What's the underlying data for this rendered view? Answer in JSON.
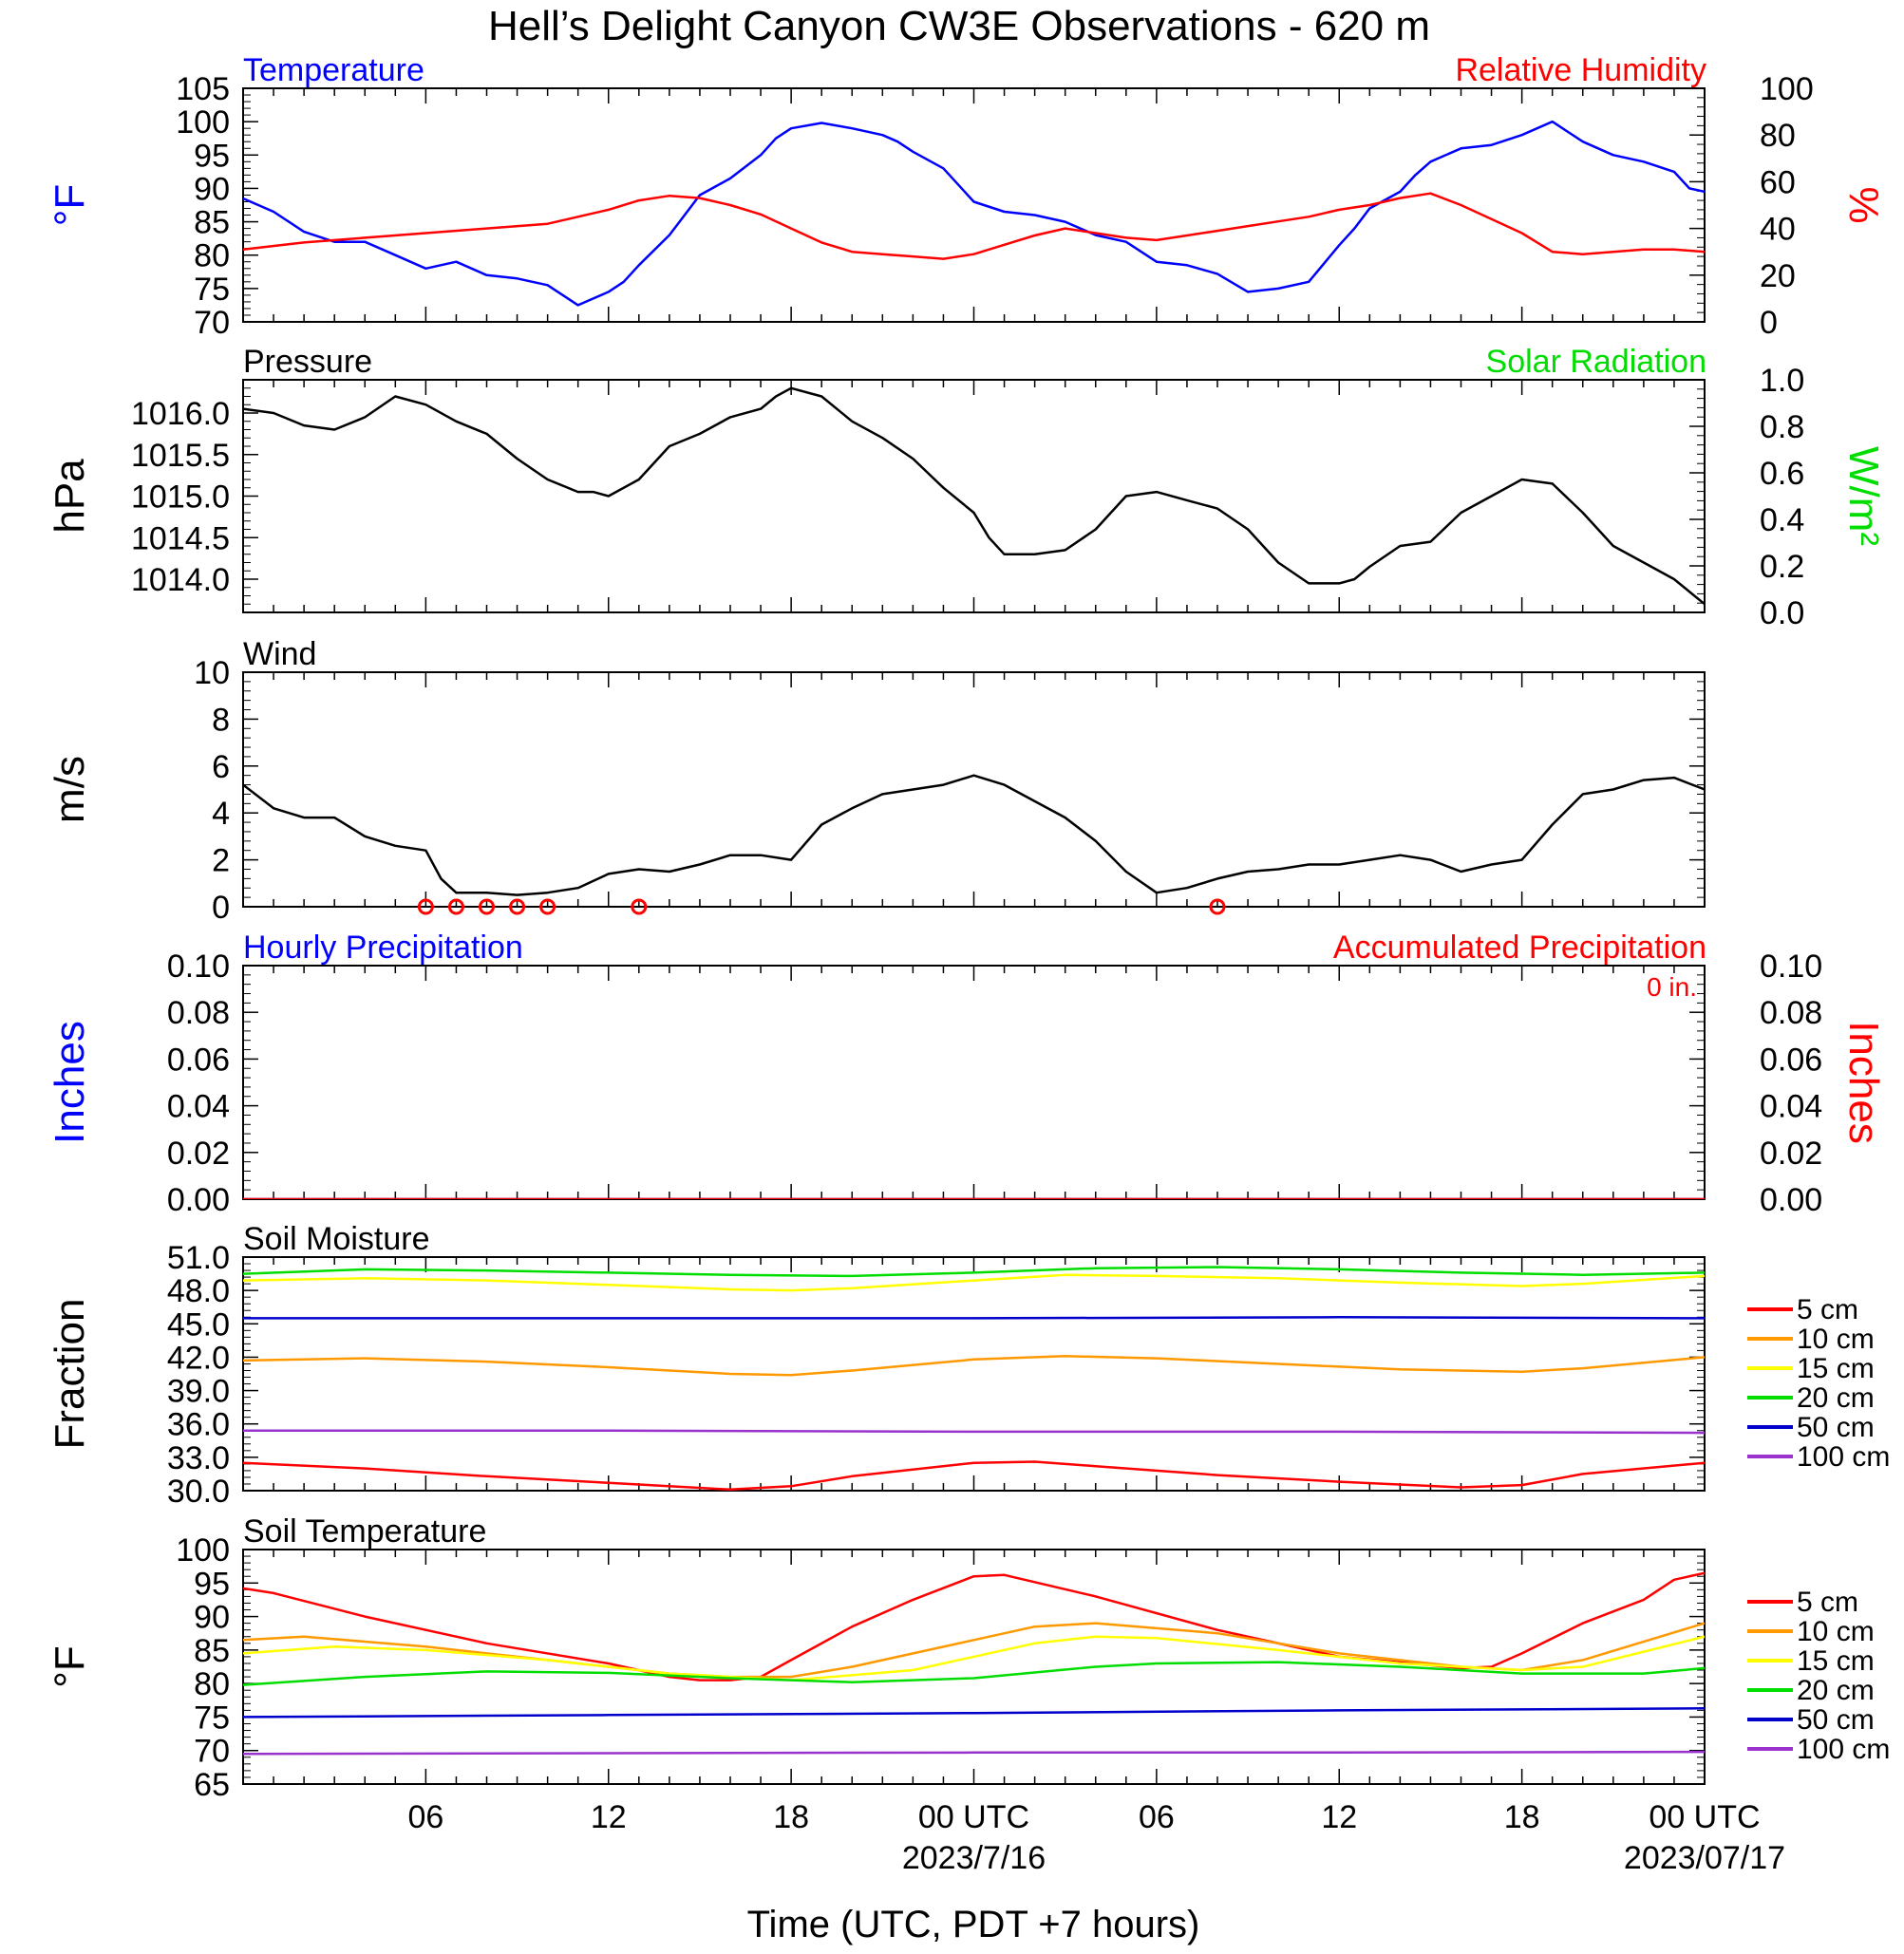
{
  "title": "Hell’s Delight Canyon CW3E Observations - 620 m",
  "x_axis": {
    "label": "Time (UTC, PDT +7 hours)",
    "range_hours": [
      0,
      48
    ],
    "tick_labels": [
      {
        "hour": 6,
        "text": "06"
      },
      {
        "hour": 12,
        "text": "12"
      },
      {
        "hour": 18,
        "text": "18"
      },
      {
        "hour": 24,
        "text": "00 UTC",
        "sub": "2023/7/16"
      },
      {
        "hour": 30,
        "text": "06"
      },
      {
        "hour": 36,
        "text": "12"
      },
      {
        "hour": 42,
        "text": "18"
      },
      {
        "hour": 48,
        "text": "00 UTC",
        "sub": "2023/07/17"
      }
    ]
  },
  "colors": {
    "blue": "#0000ff",
    "red": "#ff0000",
    "green": "#00dd00",
    "black": "#000000",
    "orange": "#ff9900",
    "yellow": "#ffff00",
    "soil_blue": "#0000cc",
    "purple": "#9933cc"
  },
  "chart_data": [
    {
      "id": "temp_rh",
      "type": "line",
      "title_left": "Temperature",
      "title_right": "Relative Humidity",
      "ylabel_left": "°F",
      "ylabel_right": "%",
      "ylim_left": [
        70,
        105
      ],
      "ylim_right": [
        0,
        100
      ],
      "yticks_left": [
        "70",
        "75",
        "80",
        "85",
        "90",
        "95",
        "100",
        "105"
      ],
      "yticks_right": [
        "0",
        "20",
        "40",
        "60",
        "80",
        "100"
      ],
      "series": [
        {
          "name": "Temperature",
          "axis": "left",
          "color": "#0000ff",
          "x": [
            0,
            1,
            2,
            3,
            4,
            5,
            6,
            7,
            8,
            9,
            10,
            11,
            12,
            12.5,
            13,
            14,
            15,
            16,
            17,
            17.5,
            18,
            19,
            20,
            21,
            21.5,
            22,
            23,
            24,
            25,
            26,
            27,
            28,
            29,
            30,
            31,
            32,
            33,
            34,
            35,
            36,
            36.5,
            37,
            38,
            38.5,
            39,
            40,
            41,
            42,
            43,
            44,
            45,
            46,
            47,
            47.5,
            48
          ],
          "y": [
            88.5,
            86.5,
            83.5,
            82,
            82,
            80,
            78,
            79,
            77,
            76.5,
            75.5,
            72.5,
            74.5,
            76,
            78.5,
            83,
            89,
            91.5,
            95,
            97.5,
            99,
            99.8,
            99,
            98,
            97,
            95.5,
            93,
            88,
            86.5,
            86,
            85,
            83,
            82,
            79,
            78.5,
            77.2,
            74.5,
            75,
            76,
            81.5,
            84,
            87,
            89.5,
            92,
            94,
            96,
            96.5,
            98,
            100,
            97,
            95,
            94,
            92.5,
            90,
            89.5
          ]
        },
        {
          "name": "Relative Humidity",
          "axis": "right",
          "color": "#ff0000",
          "x": [
            0,
            2,
            4,
            6,
            8,
            10,
            11,
            12,
            13,
            14,
            15,
            16,
            17,
            18,
            19,
            20,
            21,
            22,
            23,
            24,
            25,
            26,
            27,
            28,
            29,
            30,
            31,
            32,
            33,
            34,
            35,
            36,
            37,
            38,
            39,
            40,
            41,
            42,
            43,
            44,
            45,
            46,
            47,
            48
          ],
          "y": [
            31,
            34,
            36,
            38,
            40,
            42,
            45,
            48,
            52,
            54,
            53,
            50,
            46,
            40,
            34,
            30,
            29,
            28,
            27,
            29,
            33,
            37,
            40,
            38,
            36,
            35,
            37,
            39,
            41,
            43,
            45,
            48,
            50,
            53,
            55,
            50,
            44,
            38,
            30,
            29,
            30,
            31,
            31,
            30
          ]
        }
      ]
    },
    {
      "id": "pressure",
      "type": "line",
      "title_left": "Pressure",
      "title_right": "Solar Radiation",
      "ylabel_left": "hPa",
      "ylabel_right": "W/m²",
      "ylim_left": [
        1013.6,
        1016.4
      ],
      "ylim_right": [
        0,
        1.0
      ],
      "yticks_left": [
        {
          "v": 1014.0,
          "t": "1014.0"
        },
        {
          "v": 1014.5,
          "t": "1014.5"
        },
        {
          "v": 1015.0,
          "t": "1015.0"
        },
        {
          "v": 1015.5,
          "t": "1015.5"
        },
        {
          "v": 1016.0,
          "t": "1016.0"
        }
      ],
      "yticks_right": [
        "0.0",
        "0.2",
        "0.4",
        "0.6",
        "0.8",
        "1.0"
      ],
      "series": [
        {
          "name": "Pressure",
          "axis": "left",
          "color": "#000000",
          "x": [
            0,
            1,
            2,
            3,
            4,
            5,
            6,
            7,
            8,
            9,
            10,
            11,
            11.5,
            12,
            13,
            14,
            15,
            16,
            17,
            17.5,
            18,
            19,
            20,
            21,
            22,
            23,
            24,
            24.5,
            25,
            26,
            27,
            28,
            29,
            30,
            31,
            32,
            33,
            34,
            35,
            36,
            36.5,
            37,
            38,
            39,
            40,
            41,
            42,
            43,
            44,
            45,
            46,
            47,
            48
          ],
          "y": [
            1016.05,
            1016.0,
            1015.85,
            1015.8,
            1015.95,
            1016.2,
            1016.1,
            1015.9,
            1015.75,
            1015.45,
            1015.2,
            1015.05,
            1015.05,
            1015.0,
            1015.2,
            1015.6,
            1015.75,
            1015.95,
            1016.05,
            1016.2,
            1016.3,
            1016.2,
            1015.9,
            1015.7,
            1015.45,
            1015.1,
            1014.8,
            1014.5,
            1014.3,
            1014.3,
            1014.35,
            1014.6,
            1015.0,
            1015.05,
            1014.95,
            1014.85,
            1014.6,
            1014.2,
            1013.95,
            1013.95,
            1014.0,
            1014.15,
            1014.4,
            1014.45,
            1014.8,
            1015.0,
            1015.2,
            1015.15,
            1014.8,
            1014.4,
            1014.2,
            1014.0,
            1013.7
          ]
        }
      ]
    },
    {
      "id": "wind",
      "type": "line",
      "title_left": "Wind",
      "ylabel_left": "m/s",
      "ylim_left": [
        0,
        10
      ],
      "yticks_left": [
        "0",
        "2",
        "4",
        "6",
        "8",
        "10"
      ],
      "series": [
        {
          "name": "Wind",
          "axis": "left",
          "color": "#000000",
          "x": [
            0,
            1,
            2,
            3,
            4,
            5,
            6,
            6.5,
            7,
            8,
            9,
            10,
            11,
            12,
            13,
            14,
            15,
            16,
            17,
            18,
            19,
            20,
            21,
            22,
            23,
            24,
            25,
            26,
            27,
            28,
            29,
            30,
            31,
            32,
            33,
            34,
            35,
            36,
            37,
            38,
            39,
            40,
            41,
            42,
            43,
            44,
            45,
            46,
            47,
            48
          ],
          "y": [
            5.2,
            4.2,
            3.8,
            3.8,
            3.0,
            2.6,
            2.4,
            1.2,
            0.6,
            0.6,
            0.5,
            0.6,
            0.8,
            1.4,
            1.6,
            1.5,
            1.8,
            2.2,
            2.2,
            2.0,
            3.5,
            4.2,
            4.8,
            5.0,
            5.2,
            5.6,
            5.2,
            4.5,
            3.8,
            2.8,
            1.5,
            0.6,
            0.8,
            1.2,
            1.5,
            1.6,
            1.8,
            1.8,
            2.0,
            2.2,
            2.0,
            1.5,
            1.8,
            2.0,
            3.5,
            4.8,
            5.0,
            5.4,
            5.5,
            5.0
          ]
        }
      ],
      "calm_circle_hours": [
        6,
        7,
        8,
        9,
        10,
        13,
        32
      ]
    },
    {
      "id": "precip",
      "type": "line",
      "title_left": "Hourly Precipitation",
      "title_right": "Accumulated Precipitation",
      "annotation": "0 in.",
      "ylabel_left": "Inches",
      "ylabel_right": "Inches",
      "ylim_left": [
        0,
        0.1
      ],
      "ylim_right": [
        0,
        0.1
      ],
      "yticks_left": [
        "0.00",
        "0.02",
        "0.04",
        "0.06",
        "0.08",
        "0.10"
      ],
      "yticks_right": [
        "0.00",
        "0.02",
        "0.04",
        "0.06",
        "0.08",
        "0.10"
      ],
      "series": [
        {
          "name": "Hourly Precipitation",
          "axis": "left",
          "color": "#0000ff",
          "x": [
            0,
            48
          ],
          "y": [
            0,
            0
          ]
        },
        {
          "name": "Accumulated Precipitation",
          "axis": "right",
          "color": "#ff0000",
          "x": [
            0,
            48
          ],
          "y": [
            0,
            0
          ]
        }
      ]
    },
    {
      "id": "soil_moisture",
      "type": "line",
      "title_left": "Soil Moisture",
      "ylabel_left": "Fraction",
      "ylim_left": [
        30,
        51
      ],
      "yticks_left": [
        "30.0",
        "33.0",
        "36.0",
        "39.0",
        "42.0",
        "45.0",
        "48.0",
        "51.0"
      ],
      "legend": [
        "5 cm",
        "10 cm",
        "15 cm",
        "20 cm",
        "50 cm",
        "100 cm"
      ],
      "series": [
        {
          "name": "5 cm",
          "color": "#ff0000",
          "x": [
            0,
            4,
            8,
            12,
            16,
            18,
            20,
            24,
            26,
            28,
            32,
            36,
            40,
            42,
            44,
            48
          ],
          "y": [
            32.5,
            32.0,
            31.3,
            30.7,
            30.1,
            30.4,
            31.3,
            32.5,
            32.6,
            32.2,
            31.4,
            30.8,
            30.3,
            30.5,
            31.5,
            32.5
          ]
        },
        {
          "name": "10 cm",
          "color": "#ff9900",
          "x": [
            0,
            4,
            8,
            12,
            16,
            18,
            20,
            24,
            27,
            30,
            34,
            38,
            42,
            44,
            48
          ],
          "y": [
            41.7,
            41.9,
            41.6,
            41.1,
            40.5,
            40.4,
            40.8,
            41.8,
            42.1,
            41.9,
            41.4,
            40.9,
            40.7,
            41.0,
            42.0
          ]
        },
        {
          "name": "15 cm",
          "color": "#ffff00",
          "x": [
            0,
            4,
            8,
            12,
            16,
            18,
            20,
            24,
            27,
            30,
            34,
            38,
            42,
            44,
            48
          ],
          "y": [
            48.9,
            49.1,
            48.9,
            48.5,
            48.1,
            48.0,
            48.2,
            48.9,
            49.4,
            49.3,
            49.1,
            48.7,
            48.4,
            48.6,
            49.3
          ]
        },
        {
          "name": "20 cm",
          "color": "#00dd00",
          "x": [
            0,
            4,
            8,
            12,
            16,
            20,
            24,
            28,
            32,
            36,
            40,
            44,
            48
          ],
          "y": [
            49.5,
            49.9,
            49.8,
            49.6,
            49.4,
            49.3,
            49.6,
            50.0,
            50.1,
            49.9,
            49.6,
            49.4,
            49.6
          ]
        },
        {
          "name": "50 cm",
          "color": "#0000cc",
          "x": [
            0,
            12,
            24,
            36,
            48
          ],
          "y": [
            45.5,
            45.5,
            45.5,
            45.6,
            45.5
          ]
        },
        {
          "name": "100 cm",
          "color": "#9933cc",
          "x": [
            0,
            12,
            24,
            36,
            48
          ],
          "y": [
            35.4,
            35.4,
            35.3,
            35.3,
            35.2
          ]
        }
      ]
    },
    {
      "id": "soil_temp",
      "type": "line",
      "title_left": "Soil Temperature",
      "ylabel_left": "°F",
      "ylim_left": [
        65,
        100
      ],
      "yticks_left": [
        "65",
        "70",
        "75",
        "80",
        "85",
        "90",
        "95",
        "100"
      ],
      "legend": [
        "5 cm",
        "10 cm",
        "15 cm",
        "20 cm",
        "50 cm",
        "100 cm"
      ],
      "series": [
        {
          "name": "5 cm",
          "color": "#ff0000",
          "x": [
            0,
            1,
            4,
            8,
            12,
            14,
            15,
            16,
            17,
            18,
            20,
            22,
            24,
            25,
            28,
            32,
            36,
            40,
            41,
            42,
            44,
            46,
            47,
            48
          ],
          "y": [
            94.2,
            93.5,
            90.0,
            86.0,
            83.0,
            81.0,
            80.5,
            80.5,
            81.0,
            83.5,
            88.5,
            92.5,
            96.0,
            96.2,
            93.0,
            88.0,
            84.0,
            82.3,
            82.5,
            84.5,
            89.0,
            92.5,
            95.5,
            96.5
          ]
        },
        {
          "name": "10 cm",
          "color": "#ff9900",
          "x": [
            0,
            2,
            6,
            10,
            14,
            16,
            18,
            20,
            24,
            26,
            28,
            32,
            36,
            40,
            42,
            44,
            48
          ],
          "y": [
            86.5,
            87.0,
            85.5,
            83.5,
            81.5,
            81.0,
            81.0,
            82.5,
            86.5,
            88.5,
            89.0,
            87.5,
            84.5,
            82.5,
            82.0,
            83.5,
            89.0
          ]
        },
        {
          "name": "15 cm",
          "color": "#ffff00",
          "x": [
            0,
            3,
            6,
            10,
            14,
            18,
            22,
            26,
            28,
            30,
            34,
            38,
            42,
            44,
            48
          ],
          "y": [
            84.5,
            85.5,
            85.0,
            83.5,
            81.5,
            80.5,
            82.0,
            86.0,
            87.0,
            86.8,
            85.0,
            83.0,
            82.0,
            82.5,
            87.0
          ]
        },
        {
          "name": "20 cm",
          "color": "#00dd00",
          "x": [
            0,
            4,
            8,
            12,
            16,
            20,
            24,
            28,
            30,
            34,
            38,
            42,
            46,
            48
          ],
          "y": [
            79.8,
            81.0,
            81.8,
            81.6,
            80.8,
            80.2,
            80.8,
            82.5,
            83.0,
            83.2,
            82.5,
            81.5,
            81.5,
            82.3
          ]
        },
        {
          "name": "50 cm",
          "color": "#0000cc",
          "x": [
            0,
            12,
            24,
            36,
            48
          ],
          "y": [
            75.0,
            75.3,
            75.6,
            76.0,
            76.3
          ]
        },
        {
          "name": "100 cm",
          "color": "#9933cc",
          "x": [
            0,
            12,
            24,
            36,
            48
          ],
          "y": [
            69.5,
            69.6,
            69.7,
            69.7,
            69.8
          ]
        }
      ]
    }
  ]
}
